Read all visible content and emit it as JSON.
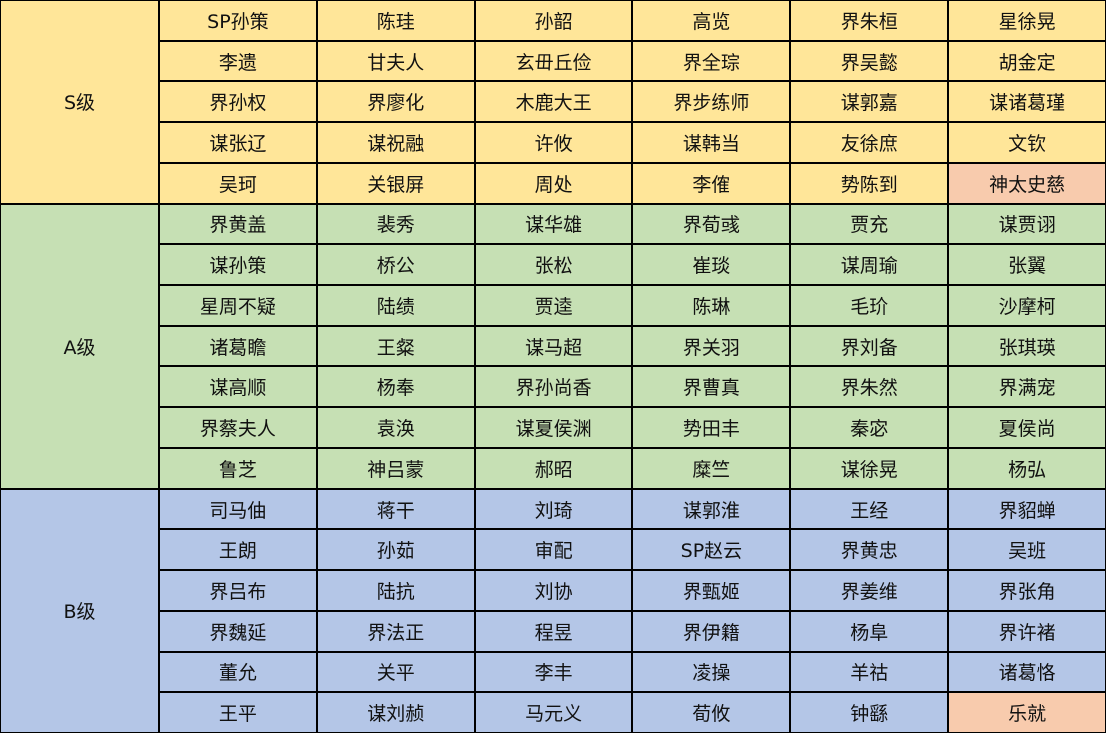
{
  "tiers": [
    {
      "label": "S级",
      "color": "#FFE699",
      "rows": [
        [
          "SP孙策",
          "陈珪",
          "孙韶",
          "高览",
          "界朱桓",
          "星徐晃"
        ],
        [
          "李遗",
          "甘夫人",
          "玄毌丘俭",
          "界全琮",
          "界吴懿",
          "胡金定"
        ],
        [
          "界孙权",
          "界廖化",
          "木鹿大王",
          "界步练师",
          "谋郭嘉",
          "谋诸葛瑾"
        ],
        [
          "谋张辽",
          "谋祝融",
          "许攸",
          "谋韩当",
          "友徐庶",
          "文钦"
        ],
        [
          "吴珂",
          "关银屏",
          "周处",
          "李傕",
          "势陈到",
          {
            "text": "神太史慈",
            "color": "#F8CBAD"
          }
        ]
      ]
    },
    {
      "label": "A级",
      "color": "#C6E0B4",
      "rows": [
        [
          "界黄盖",
          "裴秀",
          "谋华雄",
          "界荀彧",
          "贾充",
          "谋贾诩"
        ],
        [
          "谋孙策",
          "桥公",
          "张松",
          "崔琰",
          "谋周瑜",
          "张翼"
        ],
        [
          "星周不疑",
          "陆绩",
          "贾逵",
          "陈琳",
          "毛玠",
          "沙摩柯"
        ],
        [
          "诸葛瞻",
          "王粲",
          "谋马超",
          "界关羽",
          "界刘备",
          "张琪瑛"
        ],
        [
          "谋高顺",
          "杨奉",
          "界孙尚香",
          "界曹真",
          "界朱然",
          "界满宠"
        ],
        [
          "界蔡夫人",
          "袁涣",
          "谋夏侯渊",
          "势田丰",
          "秦宓",
          "夏侯尚"
        ],
        [
          "鲁芝",
          "神吕蒙",
          "郝昭",
          "糜竺",
          "谋徐晃",
          "杨弘"
        ]
      ]
    },
    {
      "label": "B级",
      "color": "#B4C6E7",
      "rows": [
        [
          "司马伷",
          "蒋干",
          "刘琦",
          "谋郭淮",
          "王经",
          "界貂蝉"
        ],
        [
          "王朗",
          "孙茹",
          "审配",
          "SP赵云",
          "界黄忠",
          "吴班"
        ],
        [
          "界吕布",
          "陆抗",
          "刘协",
          "界甄姬",
          "界姜维",
          "界张角"
        ],
        [
          "界魏延",
          "界法正",
          "程昱",
          "界伊籍",
          "杨阜",
          "界许褚"
        ],
        [
          "董允",
          "关平",
          "李丰",
          "凌操",
          "羊祜",
          "诸葛恪"
        ],
        [
          "王平",
          "谋刘赪",
          "马元义",
          "荀攸",
          "钟繇",
          {
            "text": "乐就",
            "color": "#F8CBAD"
          }
        ]
      ]
    }
  ]
}
